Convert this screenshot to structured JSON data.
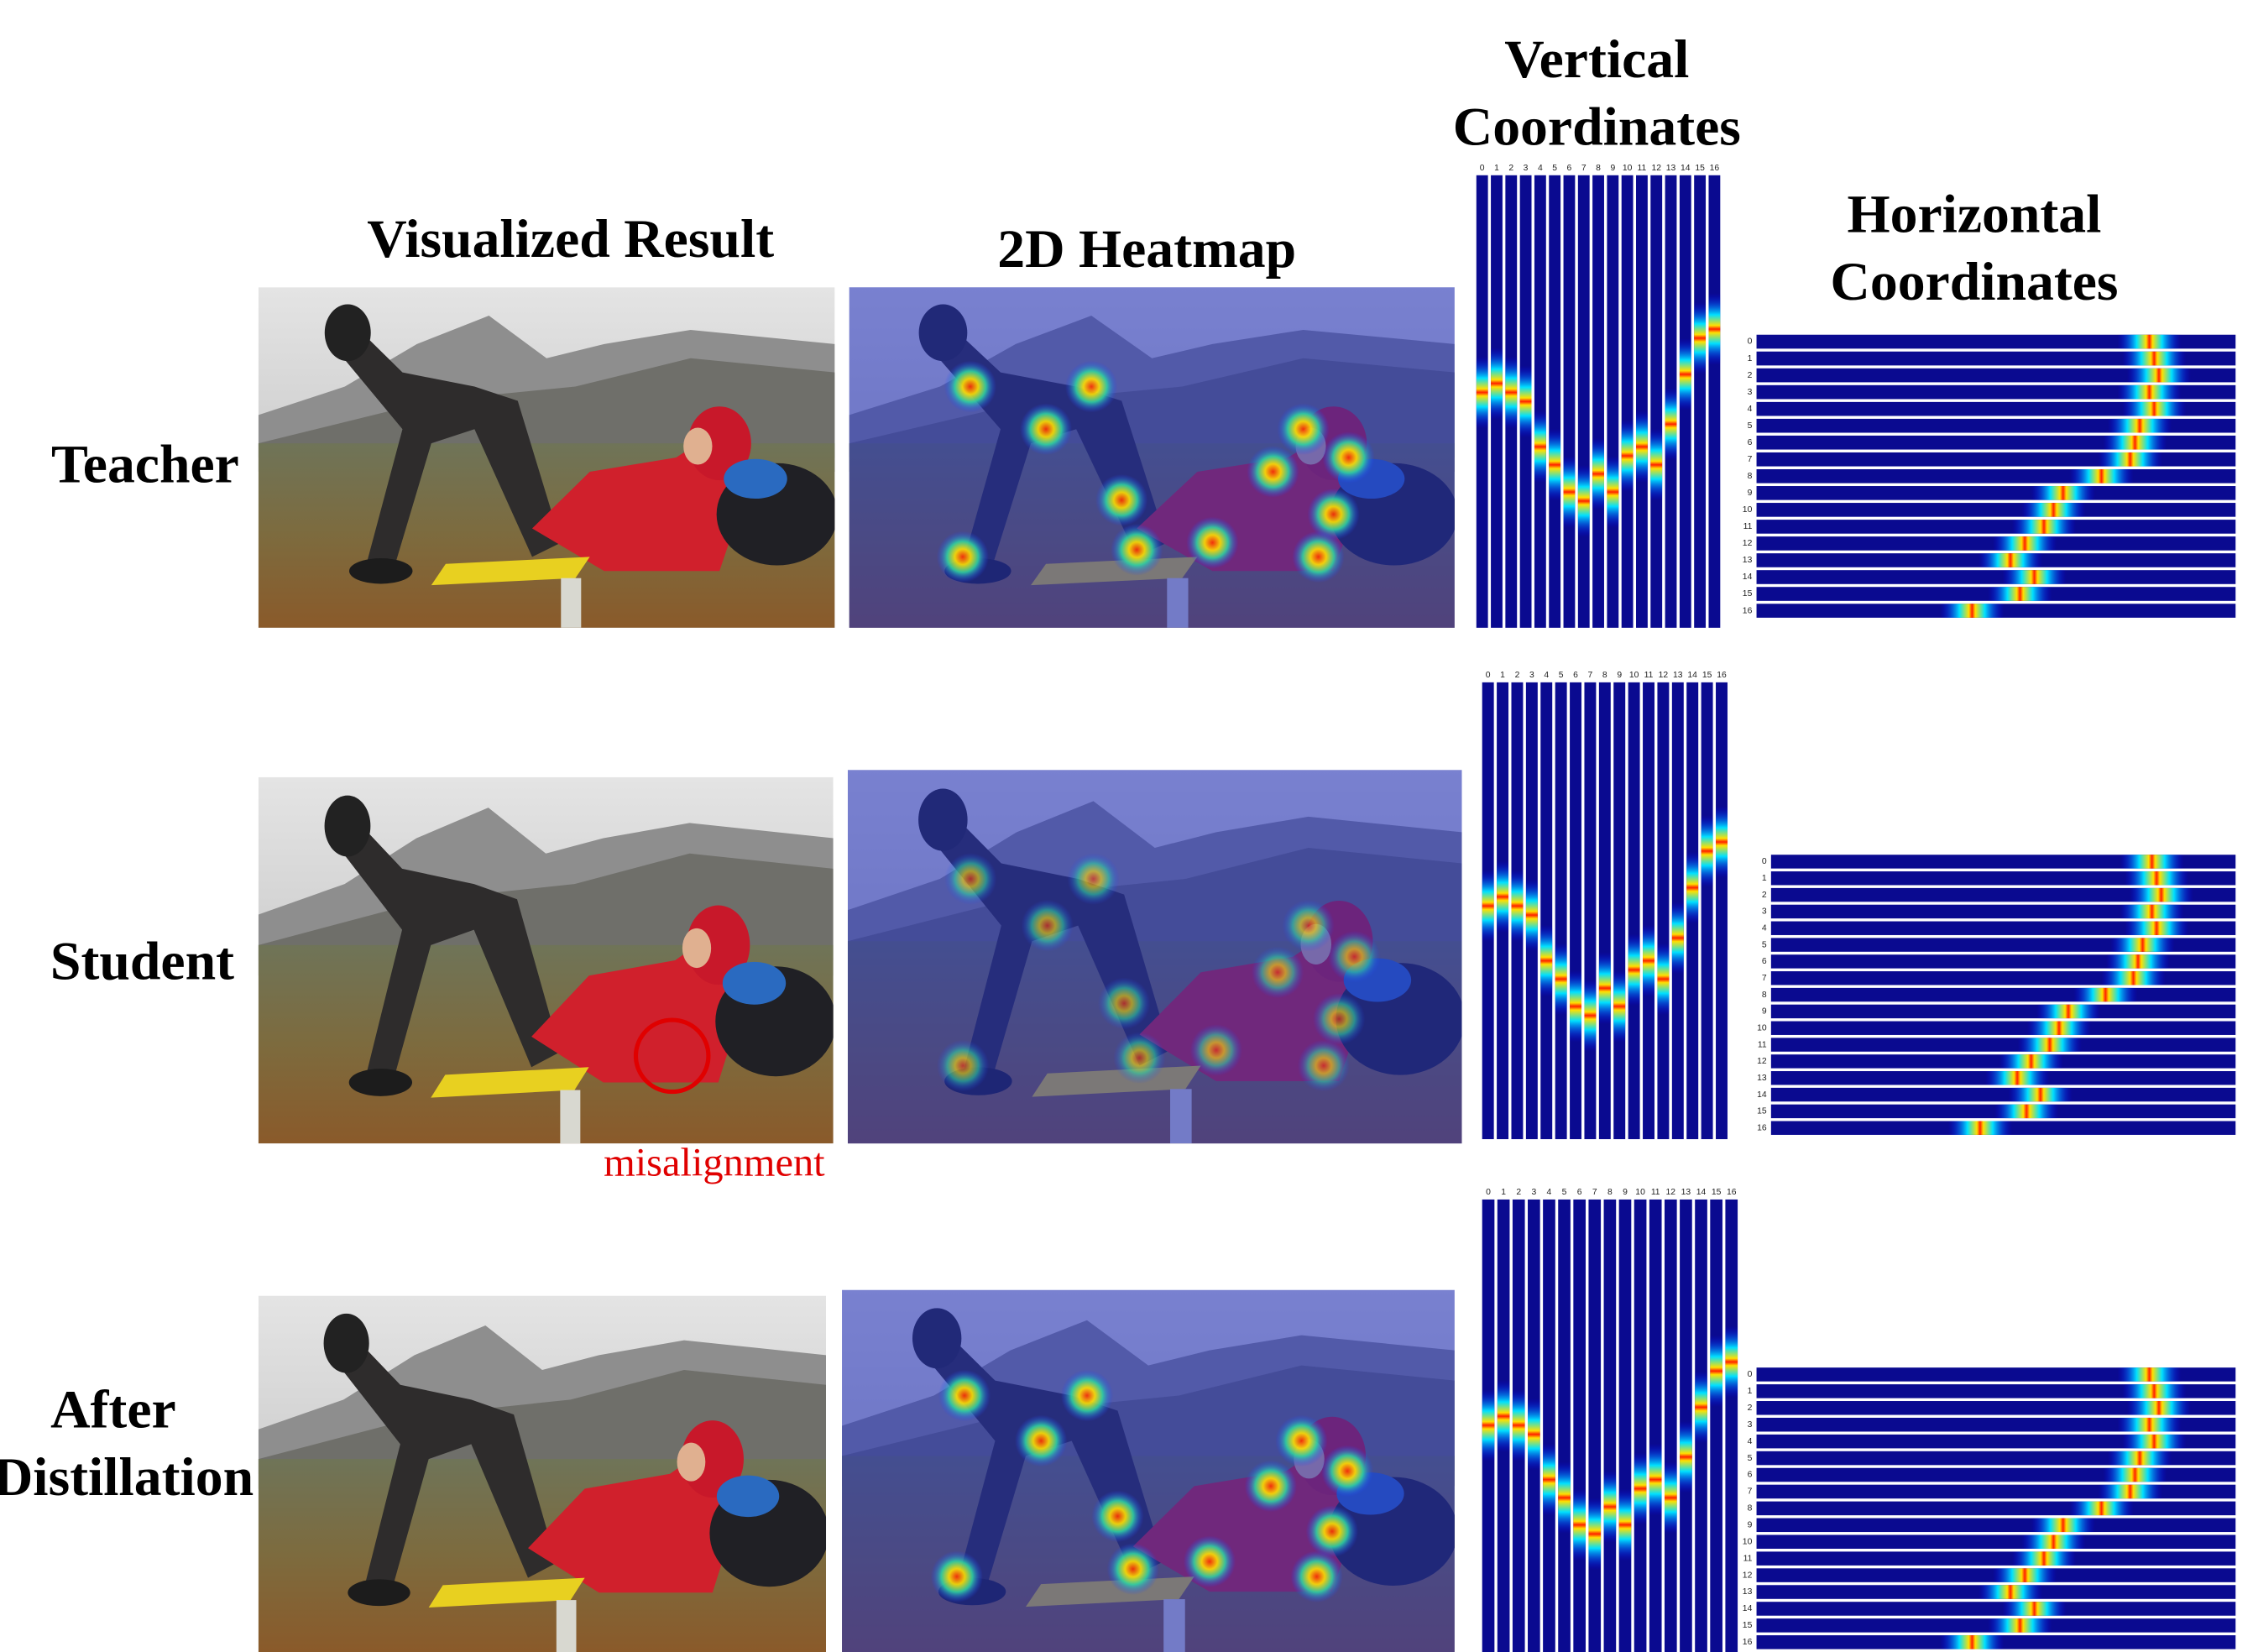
{
  "headers": {
    "visualized": "Visualized Result",
    "heatmap": "2D Heatmap",
    "vertical": [
      "Vertical",
      "Coordinates"
    ],
    "horizontal": [
      "Horizontal",
      "Coordinates"
    ]
  },
  "rows": [
    {
      "label": [
        "Teacher"
      ]
    },
    {
      "label": [
        "Student"
      ],
      "annotation": "misalignment"
    },
    {
      "label": [
        "After",
        "Distillation"
      ]
    }
  ],
  "coord_ticks": [
    "0",
    "1",
    "2",
    "3",
    "4",
    "5",
    "6",
    "7",
    "8",
    "9",
    "10",
    "11",
    "12",
    "13",
    "14",
    "15",
    "16"
  ]
}
